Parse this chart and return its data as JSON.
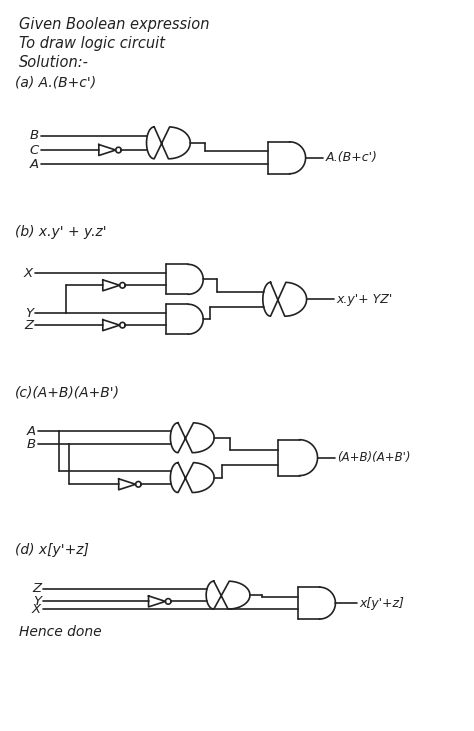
{
  "bg_color": "#ffffff",
  "ink_color": "#222222",
  "lw": 1.2,
  "header": [
    "Given Boolean expression",
    "To draw logic circuit",
    "Solution:-"
  ],
  "footer": "Hence done",
  "circuits": [
    "(a) A.(B+c')",
    "(b) x.y' + y.z'",
    "(c)(A+B)(A+B')",
    "(d) x[y'+z]"
  ],
  "output_labels": [
    "A.(B+c')",
    "x.y'+ YZ'",
    "(A+B)(A+B')",
    "x[y'+z]"
  ]
}
